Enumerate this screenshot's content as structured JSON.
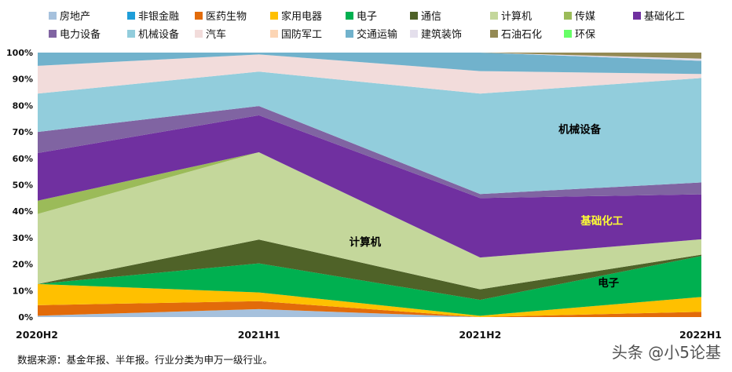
{
  "chart_data": {
    "type": "area",
    "stacked": true,
    "percent": true,
    "x": [
      "2020H2",
      "2021H1",
      "2021H2",
      "2022H1"
    ],
    "yticks": [
      "0%",
      "10%",
      "20%",
      "30%",
      "40%",
      "50%",
      "60%",
      "70%",
      "80%",
      "90%",
      "100%"
    ],
    "ylim": [
      0,
      100
    ],
    "legend_position": "top",
    "series": [
      {
        "name": "房地产",
        "color": "#a6c1dd",
        "values": [
          0.5,
          3.0,
          0.0,
          0.0
        ]
      },
      {
        "name": "非银金融",
        "color": "#1f9ed9",
        "values": [
          0.0,
          0.0,
          0.0,
          0.0
        ]
      },
      {
        "name": "医药生物",
        "color": "#e26b0a",
        "values": [
          4.0,
          3.0,
          0.0,
          2.0
        ]
      },
      {
        "name": "家用电器",
        "color": "#ffc000",
        "values": [
          8.0,
          3.3,
          0.5,
          5.6
        ]
      },
      {
        "name": "电子",
        "color": "#00b050",
        "values": [
          0.0,
          11.0,
          6.0,
          15.5
        ]
      },
      {
        "name": "通信",
        "color": "#4f6228",
        "values": [
          0.0,
          9.0,
          4.0,
          0.5
        ]
      },
      {
        "name": "计算机",
        "color": "#c4d79b",
        "values": [
          26.5,
          33.0,
          12.0,
          5.8
        ]
      },
      {
        "name": "传媒",
        "color": "#9bbb59",
        "values": [
          5.0,
          0.0,
          0.0,
          0.0
        ]
      },
      {
        "name": "基础化工",
        "color": "#7030a0",
        "values": [
          18.0,
          14.0,
          22.5,
          17.0
        ]
      },
      {
        "name": "电力设备",
        "color": "#8064a2",
        "values": [
          8.0,
          3.5,
          1.5,
          4.5
        ]
      },
      {
        "name": "机械设备",
        "color": "#92cddc",
        "values": [
          14.5,
          13.0,
          38.0,
          39.5
        ]
      },
      {
        "name": "汽车",
        "color": "#f2dcdb",
        "values": [
          10.5,
          6.5,
          8.5,
          1.5
        ]
      },
      {
        "name": "国防军工",
        "color": "#fcd5b4",
        "values": [
          0.0,
          0.0,
          0.0,
          0.0
        ]
      },
      {
        "name": "交通运输",
        "color": "#71b2cc",
        "values": [
          5.0,
          0.7,
          7.0,
          5.0
        ]
      },
      {
        "name": "建筑装饰",
        "color": "#e4dfec",
        "values": [
          0.0,
          0.0,
          0.0,
          0.8
        ]
      },
      {
        "name": "石油石化",
        "color": "#948a54",
        "values": [
          0.0,
          0.0,
          0.0,
          2.3
        ]
      },
      {
        "name": "环保",
        "color": "#66ff66",
        "values": [
          0.0,
          0.0,
          0.0,
          0.0
        ]
      }
    ],
    "annotations": [
      {
        "text": "机械设备",
        "color": "#000000",
        "x": "2021H2",
        "xoffset": 0.45,
        "y": 71
      },
      {
        "text": "基础化工",
        "color": "#ffff33",
        "x": "2021H2",
        "xoffset": 0.55,
        "y": 36.5
      },
      {
        "text": "计算机",
        "color": "#000000",
        "x": "2021H1",
        "xoffset": 0.48,
        "y": 28.5
      },
      {
        "text": "电子",
        "color": "#000000",
        "x": "2021H2",
        "xoffset": 0.58,
        "y": 13
      }
    ]
  },
  "footer": {
    "source": "数据来源：基金年报、半年报。行业分类为申万一级行业。",
    "watermark": "头条 @小5论基"
  }
}
